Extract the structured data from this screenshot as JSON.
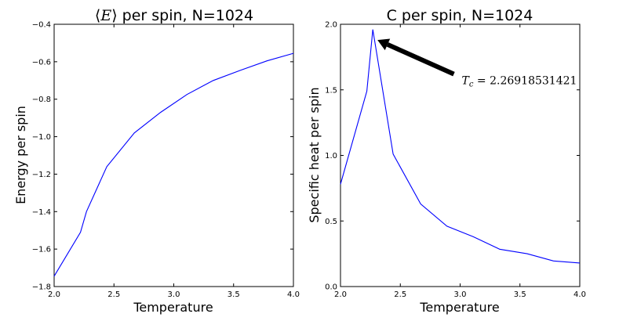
{
  "chart_data": [
    {
      "type": "line",
      "title_left": "⟨",
      "title_var": "E",
      "title_right": "⟩ per spin, N=1024",
      "xlabel": "Temperature",
      "ylabel": "Energy per spin",
      "xlim": [
        2.0,
        4.0
      ],
      "ylim": [
        -1.8,
        -0.4
      ],
      "xticks": [
        "2.0",
        "2.5",
        "3.0",
        "3.5",
        "4.0"
      ],
      "yticks": [
        "-1.8",
        "-1.6",
        "-1.4",
        "-1.2",
        "-1.0",
        "-0.8",
        "-0.6",
        "-0.4"
      ],
      "series": [
        {
          "color": "#0000ff",
          "x": [
            2.0,
            2.22,
            2.27,
            2.44,
            2.67,
            2.89,
            3.11,
            3.33,
            3.56,
            3.78,
            4.0
          ],
          "y": [
            -1.745,
            -1.51,
            -1.4,
            -1.16,
            -0.98,
            -0.87,
            -0.775,
            -0.7,
            -0.645,
            -0.595,
            -0.555
          ]
        }
      ]
    },
    {
      "type": "line",
      "title": "C per spin, N=1024",
      "xlabel": "Temperature",
      "ylabel": "Specific heat per spin",
      "xlim": [
        2.0,
        4.0
      ],
      "ylim": [
        0.0,
        2.0
      ],
      "xticks": [
        "2.0",
        "2.5",
        "3.0",
        "3.5",
        "4.0"
      ],
      "yticks": [
        "0.0",
        "0.5",
        "1.0",
        "1.5",
        "2.0"
      ],
      "series": [
        {
          "color": "#0000ff",
          "x": [
            2.0,
            2.22,
            2.27,
            2.44,
            2.67,
            2.89,
            3.11,
            3.33,
            3.56,
            3.78,
            4.0
          ],
          "y": [
            0.78,
            1.49,
            1.96,
            1.01,
            0.63,
            0.46,
            0.38,
            0.285,
            0.25,
            0.195,
            0.18
          ]
        }
      ],
      "annotation": {
        "var": "T",
        "sub": "c",
        "rest": " = 2.26918531421",
        "point": [
          2.27,
          1.88
        ],
        "text_at": [
          3.0,
          1.62
        ]
      }
    }
  ]
}
